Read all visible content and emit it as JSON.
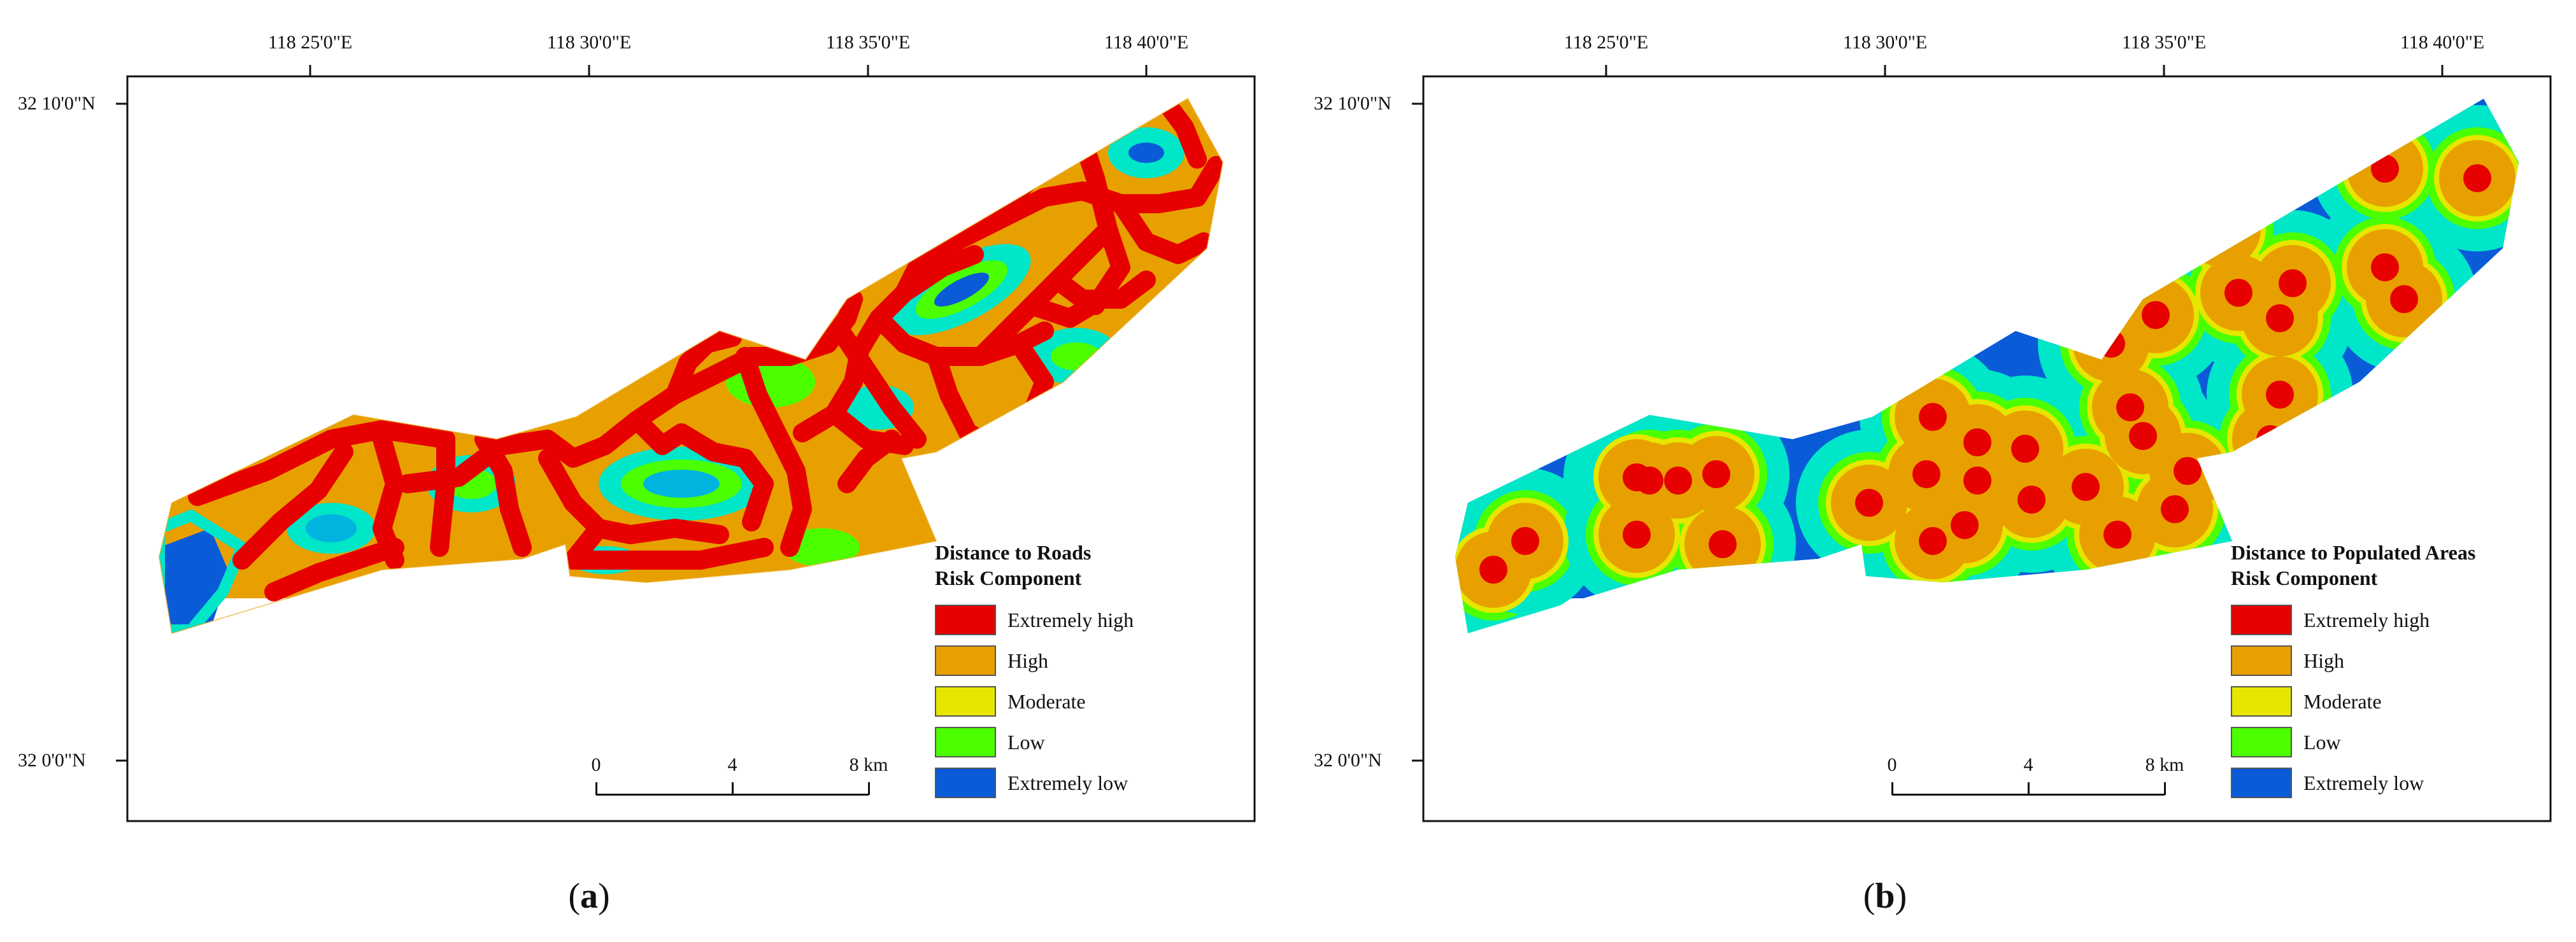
{
  "colors": {
    "extremely_high": "#e60000",
    "high": "#e8a000",
    "moderate": "#e6e600",
    "low": "#4cff00",
    "extremely_low": "#0a5bd8",
    "cyan": "#00e6c8",
    "frame": "#111111",
    "background": "#ffffff"
  },
  "graticule": {
    "longitudes": [
      "118 25'0\"E",
      "118 30'0\"E",
      "118 35'0\"E",
      "118 40'0\"E"
    ],
    "latitudes": [
      "32 10'0\"N",
      "32 0'0\"N"
    ]
  },
  "scale_bar": {
    "labels": [
      "0",
      "4",
      "8 km"
    ]
  },
  "panels": [
    {
      "id": "a",
      "caption_letter": "a",
      "legend_title_line1": "Distance to Roads",
      "legend_title_line2": "Risk Component",
      "legend": [
        {
          "label": "Extremely high",
          "color": "#e60000"
        },
        {
          "label": "High",
          "color": "#e8a000"
        },
        {
          "label": "Moderate",
          "color": "#e6e600"
        },
        {
          "label": "Low",
          "color": "#4cff00"
        },
        {
          "label": "Extremely low",
          "color": "#0a5bd8"
        }
      ]
    },
    {
      "id": "b",
      "caption_letter": "b",
      "legend_title_line1": "Distance to Populated Areas",
      "legend_title_line2": "Risk Component",
      "legend": [
        {
          "label": "Extremely high",
          "color": "#e60000"
        },
        {
          "label": "High",
          "color": "#e8a000"
        },
        {
          "label": "Moderate",
          "color": "#e6e600"
        },
        {
          "label": "Low",
          "color": "#4cff00"
        },
        {
          "label": "Extremely low",
          "color": "#0a5bd8"
        }
      ]
    }
  ]
}
